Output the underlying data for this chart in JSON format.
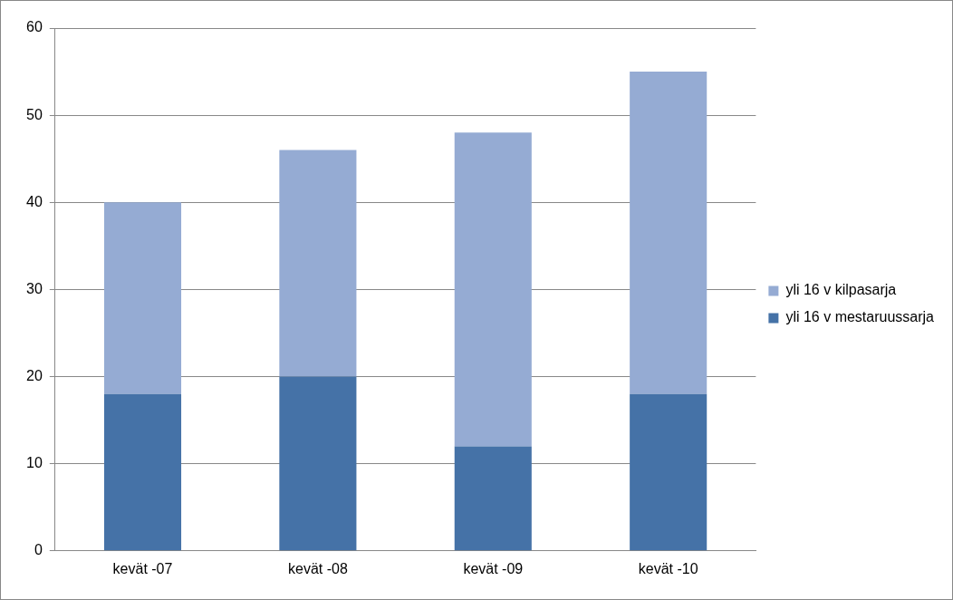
{
  "chart_data": {
    "type": "bar",
    "stacked": true,
    "categories": [
      "kevät -07",
      "kevät -08",
      "kevät -09",
      "kevät -10"
    ],
    "series": [
      {
        "name": "yli 16 v mestaruussarja",
        "color": "#4572a7",
        "values": [
          18,
          20,
          12,
          18
        ]
      },
      {
        "name": "yli 16 v kilpasarja",
        "color": "#95abd3",
        "values": [
          22,
          26,
          36,
          37
        ]
      }
    ],
    "ylim": [
      0,
      60
    ],
    "yticks": [
      0,
      10,
      20,
      30,
      40,
      50,
      60
    ],
    "grid": "y",
    "legend": "right"
  }
}
